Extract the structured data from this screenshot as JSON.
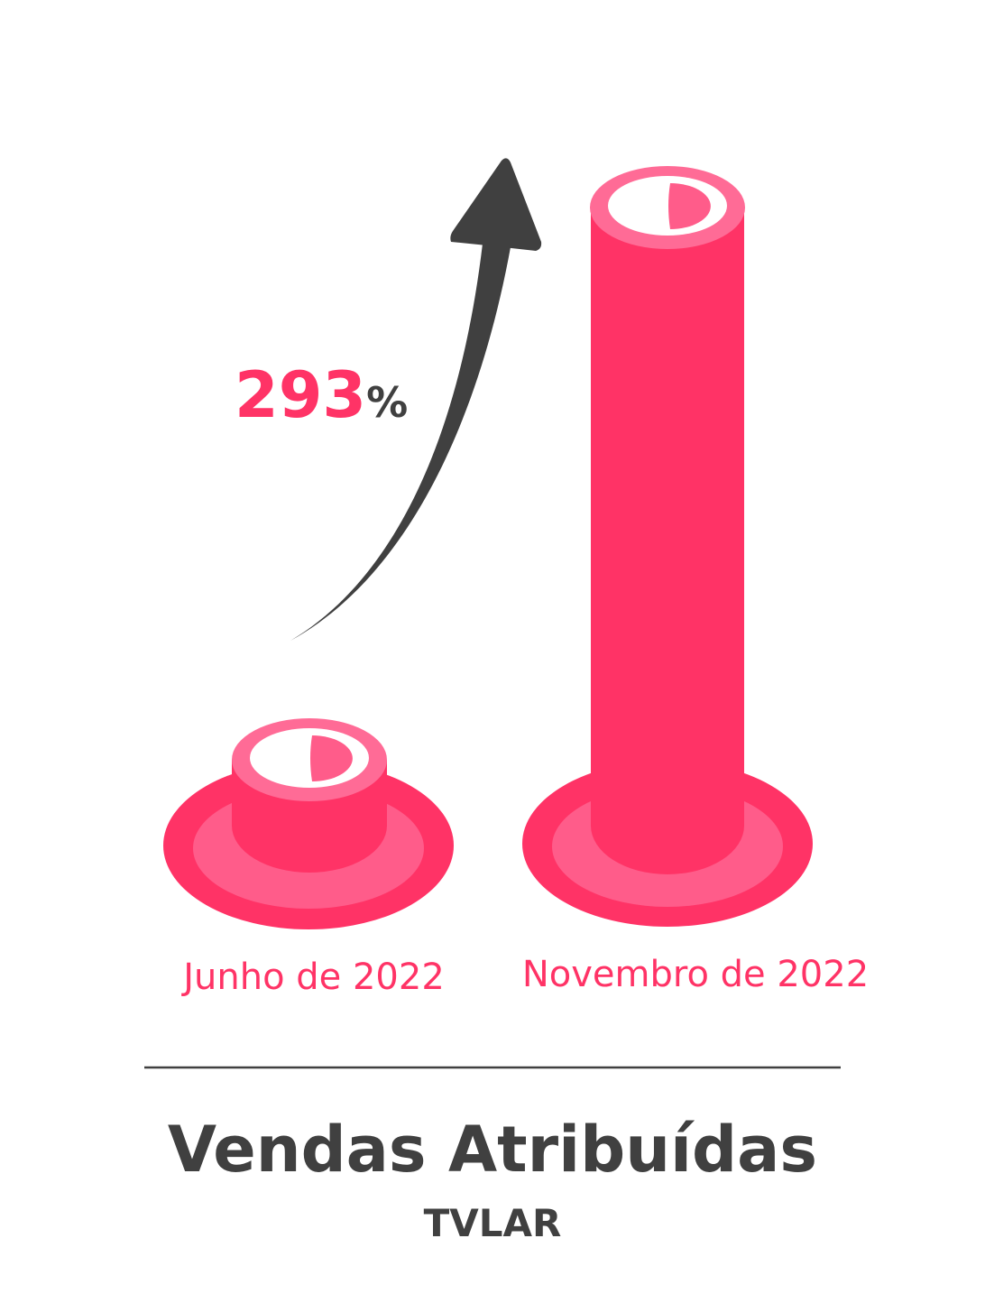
{
  "infographic": {
    "change": {
      "value": 293,
      "unit": "%"
    },
    "periods": [
      "Junho de 2022",
      "Novembro de 2022"
    ],
    "title": "Vendas Atribuídas",
    "subtitle": "TVLAR"
  }
}
